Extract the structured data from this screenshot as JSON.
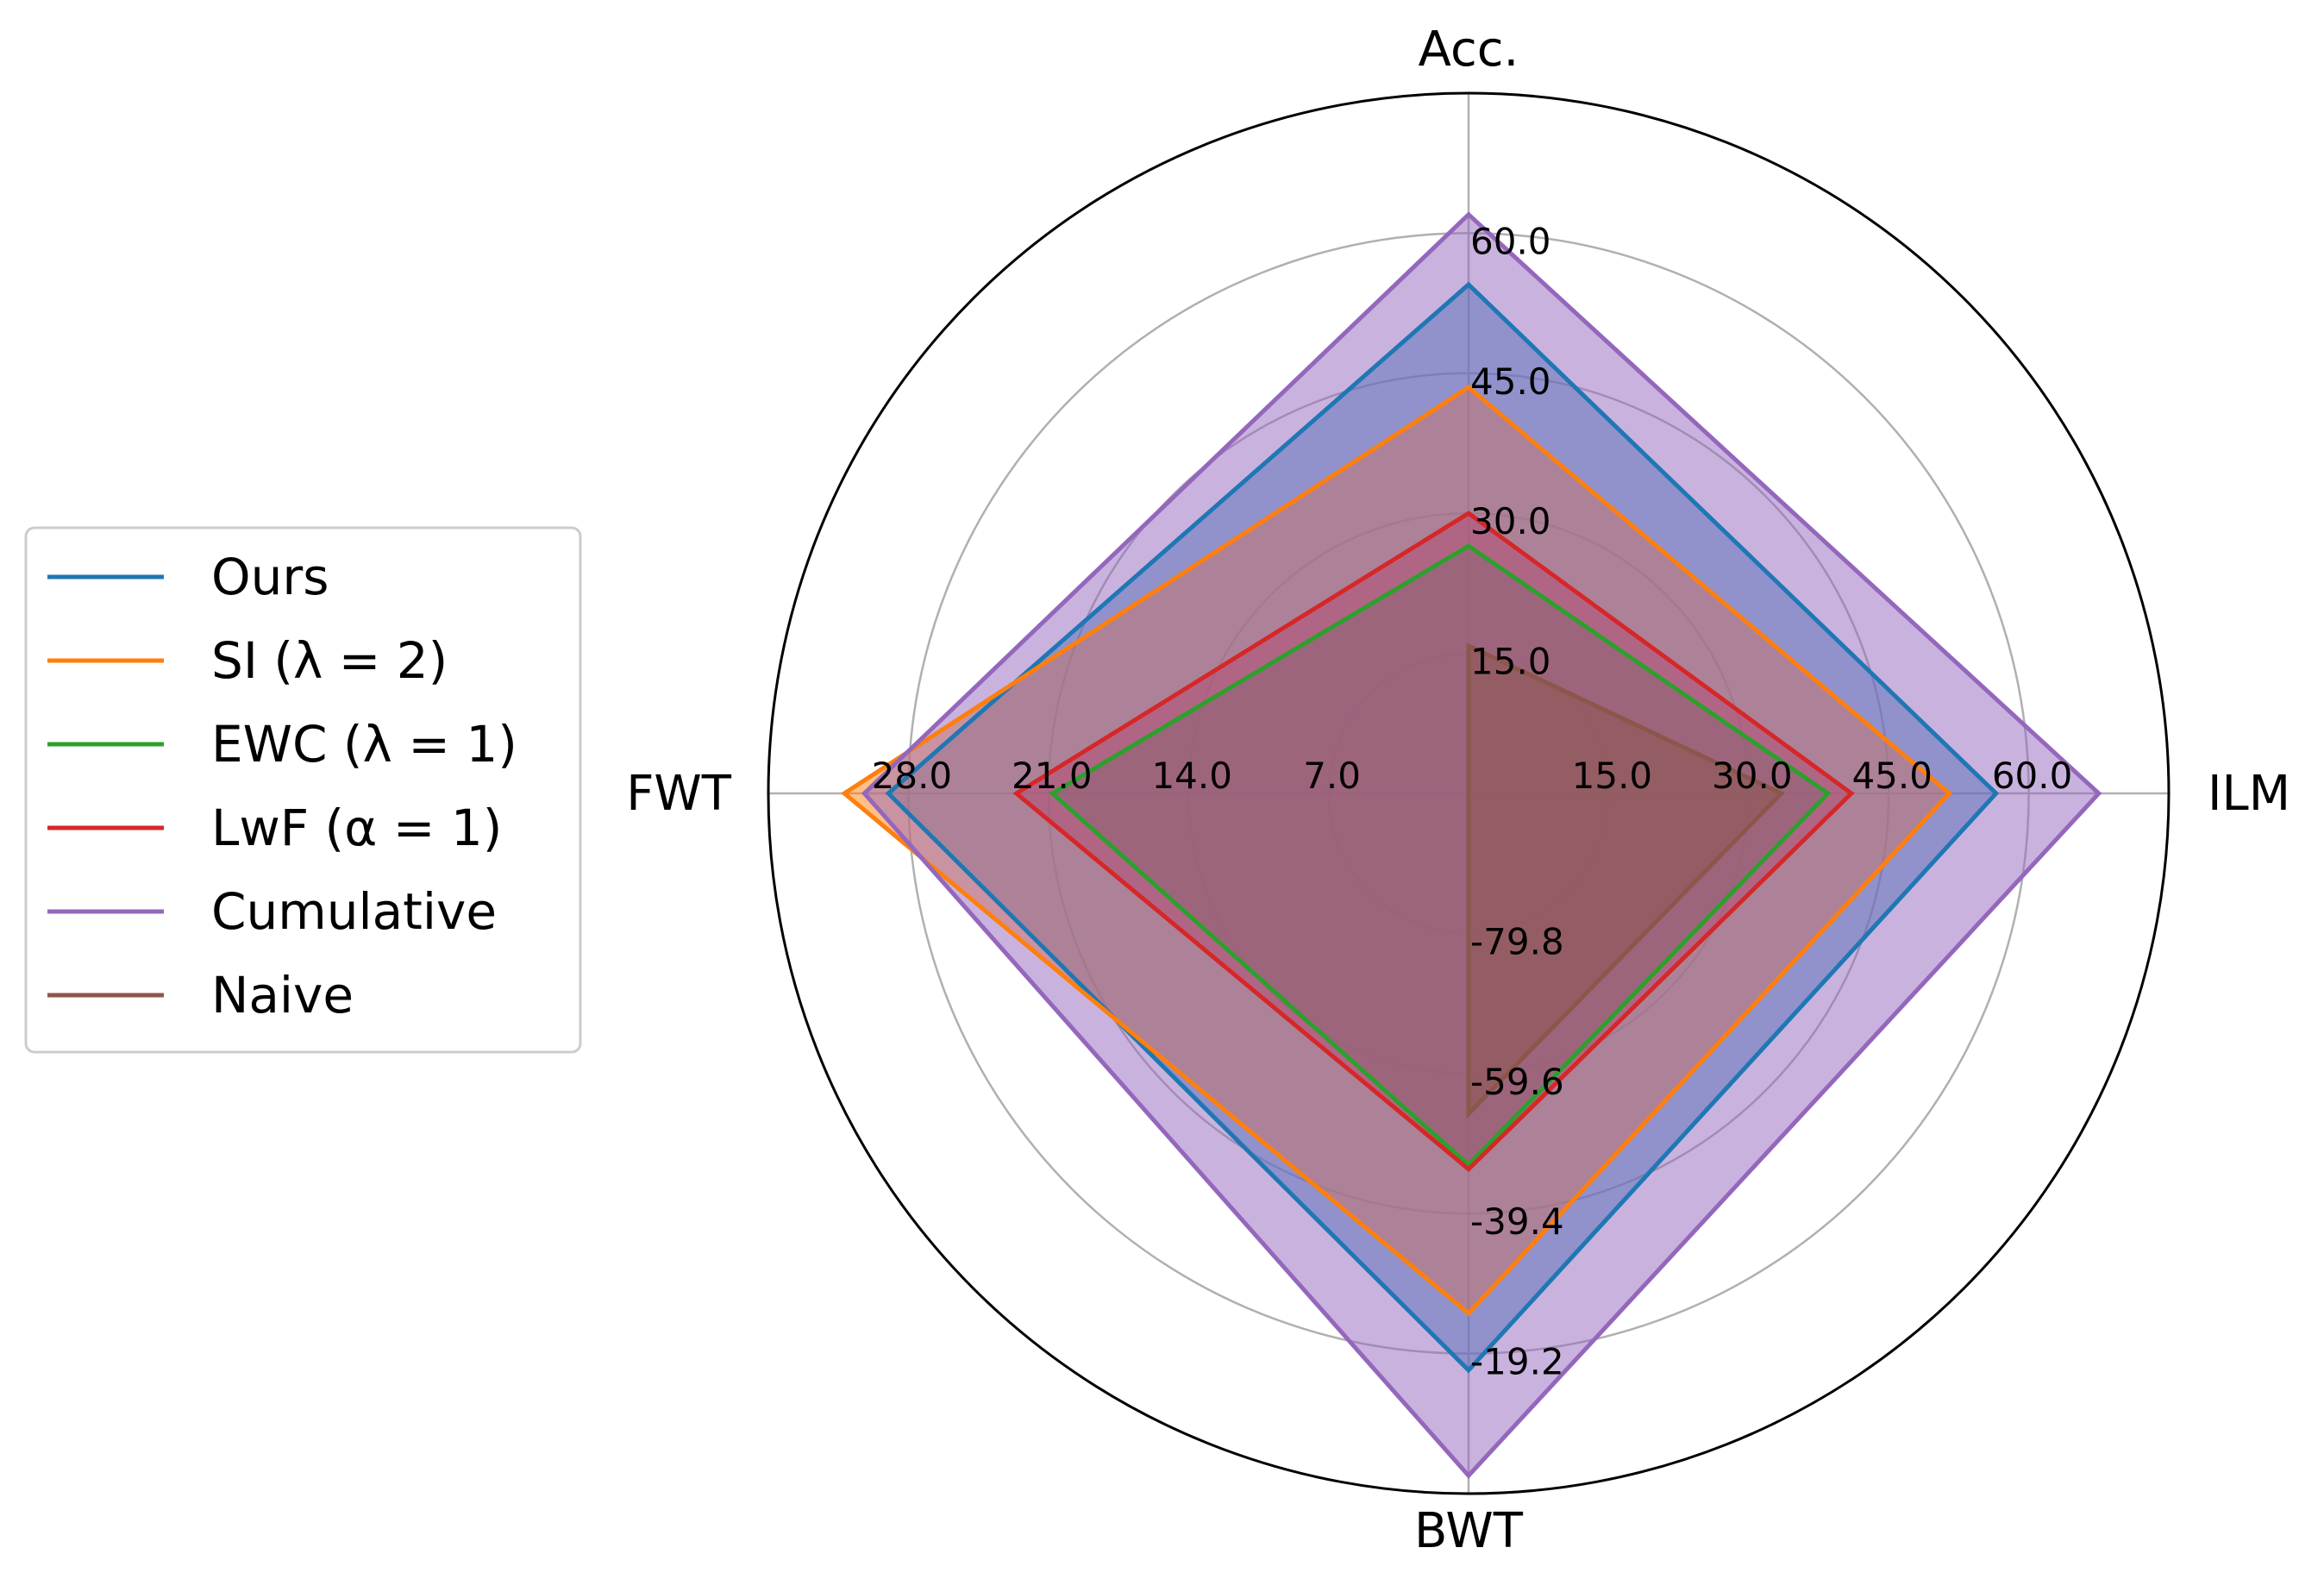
{
  "chart_data": {
    "type": "radar",
    "axes": [
      "Acc.",
      "ILM",
      "BWT",
      "FWT"
    ],
    "tick_labels": {
      "Acc.": [
        "15.0",
        "30.0",
        "45.0",
        "60.0"
      ],
      "ILM": [
        "15.0",
        "30.0",
        "45.0",
        "60.0"
      ],
      "BWT": [
        "-79.8",
        "-59.6",
        "-39.4",
        "-19.2"
      ],
      "FWT": [
        "7.0",
        "14.0",
        "21.0",
        "28.0"
      ]
    },
    "axis_ranges": {
      "Acc.": [
        0,
        75
      ],
      "ILM": [
        0,
        75
      ],
      "BWT": [
        -100,
        1
      ],
      "FWT": [
        0,
        35
      ]
    },
    "series": [
      {
        "name": "Ours",
        "color": "#1f77b4",
        "values": {
          "Acc.": 54.5,
          "ILM": 56.5,
          "BWT": -16.8,
          "FWT": 29.0
        }
      },
      {
        "name": "SI (λ = 2)",
        "color": "#ff7f0e",
        "values": {
          "Acc.": 43.5,
          "ILM": 51.5,
          "BWT": -25.0,
          "FWT": 31.2
        }
      },
      {
        "name": "EWC (λ = 1)",
        "color": "#2ca02c",
        "values": {
          "Acc.": 26.5,
          "ILM": 38.5,
          "BWT": -46.4,
          "FWT": 20.8
        }
      },
      {
        "name": "LwF (α = 1)",
        "color": "#d62728",
        "values": {
          "Acc.": 30.0,
          "ILM": 41.0,
          "BWT": -45.8,
          "FWT": 22.6
        }
      },
      {
        "name": "Cumulative",
        "color": "#9467bd",
        "values": {
          "Acc.": 62.0,
          "ILM": 67.5,
          "BWT": -1.6,
          "FWT": 30.2
        }
      },
      {
        "name": "Naive",
        "color": "#8c564b",
        "values": {
          "Acc.": 15.8,
          "ILM": 33.5,
          "BWT": -53.8,
          "FWT": 0.0
        }
      }
    ],
    "grid": true,
    "legend_position": "left"
  }
}
